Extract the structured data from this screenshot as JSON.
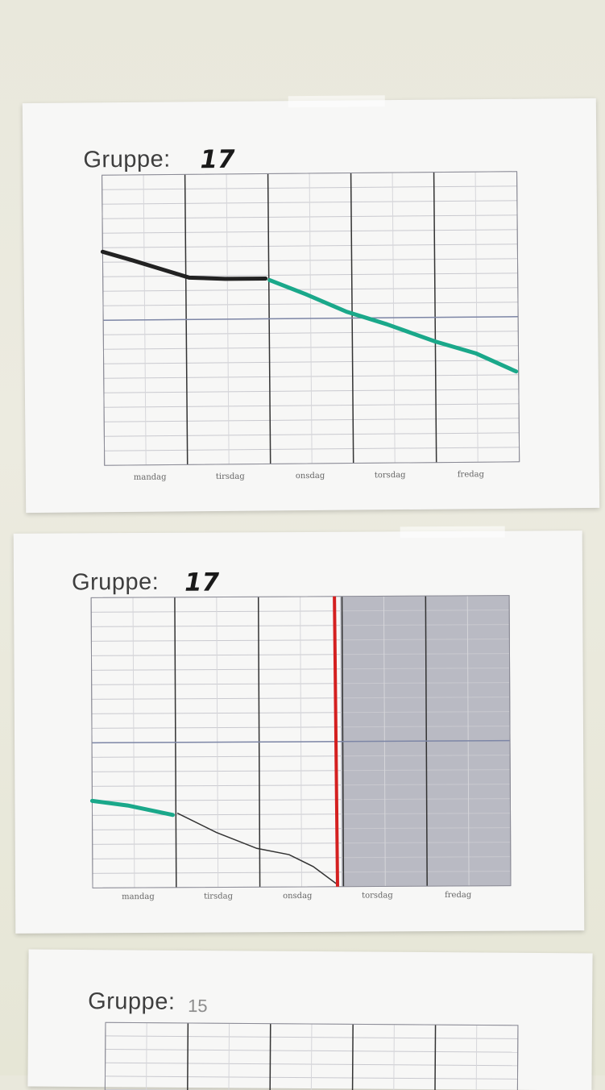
{
  "charts": [
    {
      "title_label": "Gruppe:",
      "group_number": "17",
      "days": [
        "mandag",
        "tirsdag",
        "onsdag",
        "torsdag",
        "fredag"
      ],
      "line_colors": {
        "actual": "#222222",
        "forecast": "#1aa88a"
      }
    },
    {
      "title_label": "Gruppe:",
      "group_number": "17",
      "days": [
        "mandag",
        "tirsdag",
        "onsdag",
        "torsdag",
        "fredag"
      ],
      "line_colors": {
        "forecast": "#1aa88a",
        "actual": "#333333",
        "today_marker": "#d42020",
        "future_shading": "#b9bac3"
      }
    },
    {
      "title_label": "Gruppe:",
      "group_number": "15"
    }
  ]
}
